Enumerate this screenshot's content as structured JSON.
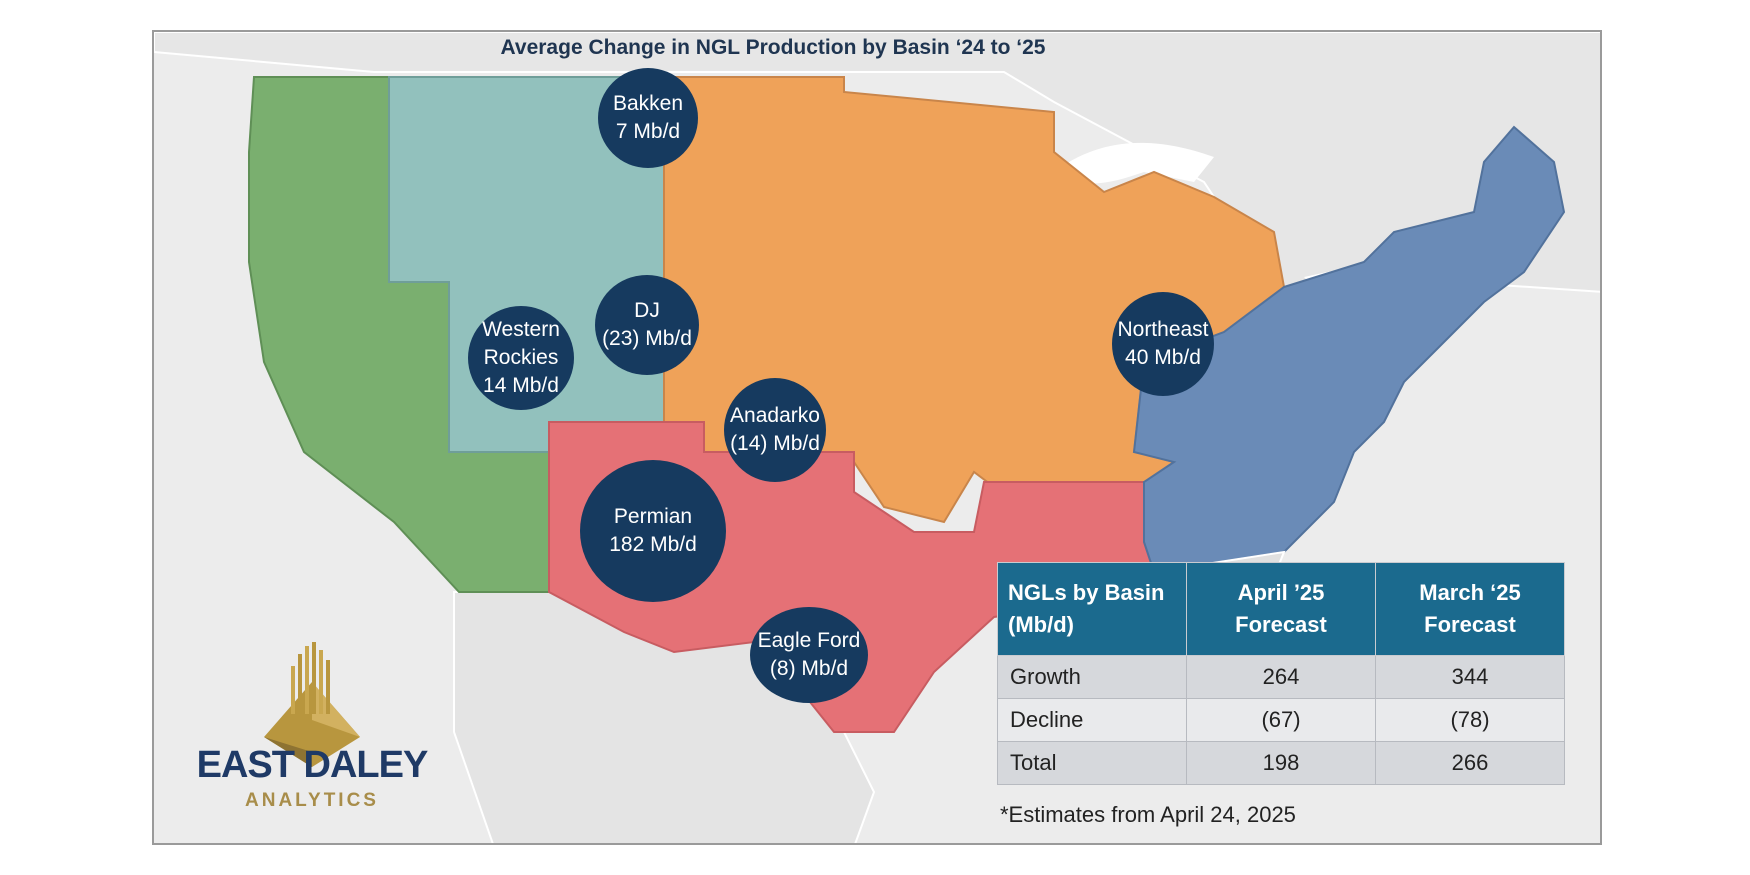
{
  "title": "Average Change in NGL Production by Basin ‘24 to ‘25",
  "colors": {
    "west": "#7aaf6f",
    "rockies": "#92c1bd",
    "midcon": "#efa259",
    "south": "#e57176",
    "northeast": "#6a8bb7",
    "bubble": "#163a5f",
    "table_header": "#1b6a8e"
  },
  "bubbles": [
    {
      "name": "Bakken",
      "value": "7 Mb/d"
    },
    {
      "name": "DJ",
      "value": "(23) Mb/d"
    },
    {
      "name": "Western Rockies",
      "line1": "Western",
      "line2": "Rockies",
      "value": "14 Mb/d"
    },
    {
      "name": "Anadarko",
      "value": "(14) Mb/d"
    },
    {
      "name": "Permian",
      "value": "182 Mb/d"
    },
    {
      "name": "Eagle Ford",
      "value": "(8) Mb/d"
    },
    {
      "name": "Northeast",
      "value": "40 Mb/d"
    }
  ],
  "table": {
    "headers": [
      "NGLs by Basin (Mb/d)",
      "April ’25 Forecast",
      "March ‘25 Forecast"
    ],
    "rows": [
      [
        "Growth",
        "264",
        "344"
      ],
      [
        "Decline",
        "(67)",
        "(78)"
      ],
      [
        "Total",
        "198",
        "266"
      ]
    ]
  },
  "note": "*Estimates from April 24, 2025",
  "logo": {
    "name": "EAST DALEY",
    "sub": "ANALYTICS"
  }
}
